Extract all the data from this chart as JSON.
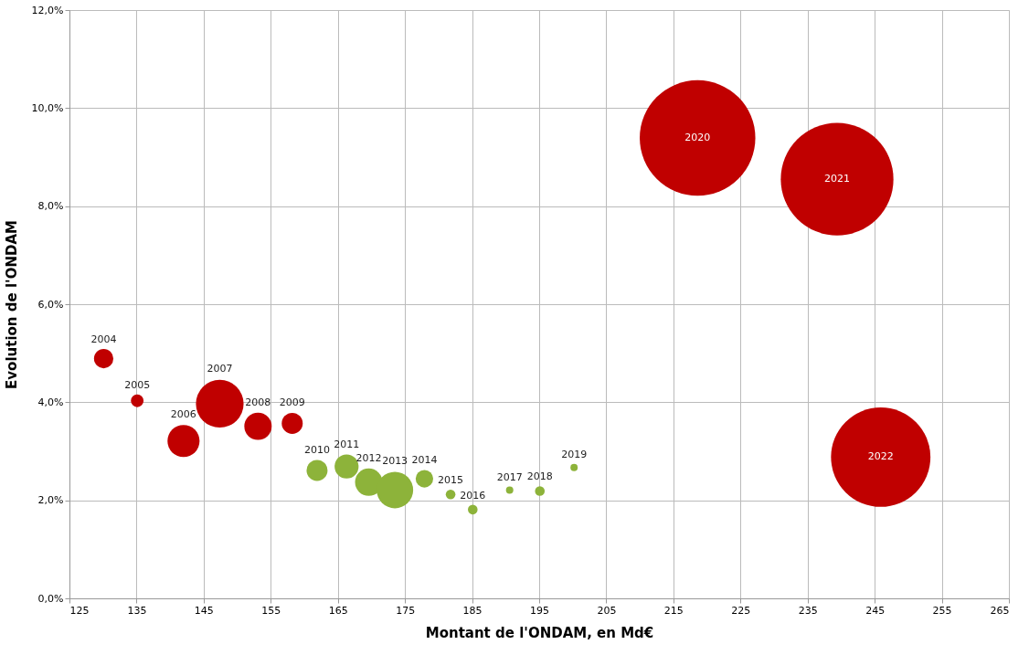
{
  "chart_data": {
    "type": "bubble",
    "xlabel": "Montant de l'ONDAM, en Md€",
    "ylabel": "Evolution de l'ONDAM",
    "xlim": [
      125,
      265
    ],
    "xticks": [
      125,
      135,
      145,
      155,
      165,
      175,
      185,
      195,
      205,
      215,
      225,
      235,
      245,
      255,
      265
    ],
    "ylim": [
      0,
      12
    ],
    "yticks": [
      {
        "value": 0,
        "label": "0,0%"
      },
      {
        "value": 2,
        "label": "2,0%"
      },
      {
        "value": 4,
        "label": "4,0%"
      },
      {
        "value": 6,
        "label": "6,0%"
      },
      {
        "value": 8,
        "label": "8,0%"
      },
      {
        "value": 10,
        "label": "10,0%"
      },
      {
        "value": 12,
        "label": "12,0%"
      }
    ],
    "grid": true,
    "x": [
      130.1,
      135.1,
      142.0,
      147.4,
      153.1,
      158.2,
      161.9,
      166.3,
      169.6,
      173.5,
      177.9,
      181.8,
      185.1,
      190.6,
      195.1,
      200.2,
      218.6,
      239.4,
      245.9
    ],
    "values": [
      4.89,
      4.03,
      3.21,
      3.97,
      3.51,
      3.57,
      2.61,
      2.69,
      2.37,
      2.21,
      2.44,
      2.12,
      1.81,
      2.21,
      2.19,
      2.67,
      9.39,
      8.55,
      2.88
    ],
    "sizes": [
      0.028,
      0.012,
      0.077,
      0.17,
      0.056,
      0.033,
      0.033,
      0.043,
      0.056,
      0.1,
      0.023,
      0.007,
      0.007,
      0.004,
      0.007,
      0.004,
      1,
      0.95,
      0.74
    ],
    "colors": [
      "#c00000",
      "#c00000",
      "#c00000",
      "#c00000",
      "#c00000",
      "#c00000",
      "#8db33a",
      "#8db33a",
      "#8db33a",
      "#8db33a",
      "#8db33a",
      "#8db33a",
      "#8db33a",
      "#8db33a",
      "#8db33a",
      "#8db33a",
      "#c00000",
      "#c00000",
      "#c00000"
    ],
    "annotations": [
      {
        "text": "2004",
        "x": 130.1,
        "y": 4.89
      },
      {
        "text": "2005",
        "x": 135.1,
        "y": 4.03
      },
      {
        "text": "2006",
        "x": 142.0,
        "y": 3.21
      },
      {
        "text": "2007",
        "x": 147.4,
        "y": 3.97
      },
      {
        "text": "2008",
        "x": 153.1,
        "y": 3.51
      },
      {
        "text": "2009",
        "x": 158.2,
        "y": 3.57
      },
      {
        "text": "2010",
        "x": 161.9,
        "y": 2.61
      },
      {
        "text": "2011",
        "x": 166.3,
        "y": 2.69
      },
      {
        "text": "2012",
        "x": 169.6,
        "y": 2.37
      },
      {
        "text": "2013",
        "x": 173.5,
        "y": 2.21
      },
      {
        "text": "2014",
        "x": 177.9,
        "y": 2.44
      },
      {
        "text": "2015",
        "x": 181.8,
        "y": 2.12
      },
      {
        "text": "2016",
        "x": 185.1,
        "y": 1.81
      },
      {
        "text": "2017",
        "x": 190.6,
        "y": 2.21
      },
      {
        "text": "2018",
        "x": 195.1,
        "y": 2.19
      },
      {
        "text": "2019",
        "x": 200.2,
        "y": 2.67
      },
      {
        "text": "2020",
        "x": 218.6,
        "y": 9.39
      },
      {
        "text": "2021",
        "x": 239.4,
        "y": 8.55
      },
      {
        "text": "2022",
        "x": 245.9,
        "y": 2.88
      }
    ]
  }
}
